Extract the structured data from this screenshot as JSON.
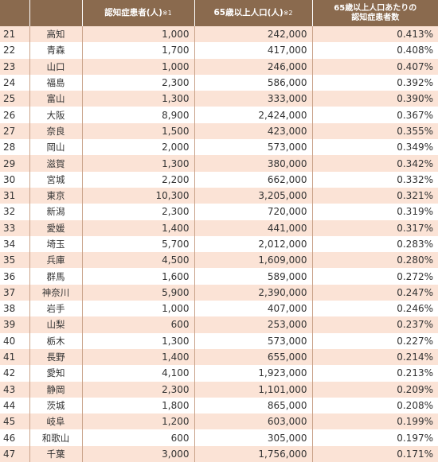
{
  "headers": {
    "rank": "",
    "prefecture": "",
    "patients": "認知症患者(人)",
    "patients_note": "※1",
    "population": "65歳以上人口(人)",
    "population_note": "※2",
    "rate_line1": "65歳以上人口あたりの",
    "rate_line2": "認知症患者数"
  },
  "rows": [
    {
      "rank": "21",
      "prefecture": "高知",
      "patients": "1,000",
      "population": "242,000",
      "rate": "0.413%"
    },
    {
      "rank": "22",
      "prefecture": "青森",
      "patients": "1,700",
      "population": "417,000",
      "rate": "0.408%"
    },
    {
      "rank": "23",
      "prefecture": "山口",
      "patients": "1,000",
      "population": "246,000",
      "rate": "0.407%"
    },
    {
      "rank": "24",
      "prefecture": "福島",
      "patients": "2,300",
      "population": "586,000",
      "rate": "0.392%"
    },
    {
      "rank": "25",
      "prefecture": "富山",
      "patients": "1,300",
      "population": "333,000",
      "rate": "0.390%"
    },
    {
      "rank": "26",
      "prefecture": "大阪",
      "patients": "8,900",
      "population": "2,424,000",
      "rate": "0.367%"
    },
    {
      "rank": "27",
      "prefecture": "奈良",
      "patients": "1,500",
      "population": "423,000",
      "rate": "0.355%"
    },
    {
      "rank": "28",
      "prefecture": "岡山",
      "patients": "2,000",
      "population": "573,000",
      "rate": "0.349%"
    },
    {
      "rank": "29",
      "prefecture": "滋賀",
      "patients": "1,300",
      "population": "380,000",
      "rate": "0.342%"
    },
    {
      "rank": "30",
      "prefecture": "宮城",
      "patients": "2,200",
      "population": "662,000",
      "rate": "0.332%"
    },
    {
      "rank": "31",
      "prefecture": "東京",
      "patients": "10,300",
      "population": "3,205,000",
      "rate": "0.321%"
    },
    {
      "rank": "32",
      "prefecture": "新潟",
      "patients": "2,300",
      "population": "720,000",
      "rate": "0.319%"
    },
    {
      "rank": "33",
      "prefecture": "愛媛",
      "patients": "1,400",
      "population": "441,000",
      "rate": "0.317%"
    },
    {
      "rank": "34",
      "prefecture": "埼玉",
      "patients": "5,700",
      "population": "2,012,000",
      "rate": "0.283%"
    },
    {
      "rank": "35",
      "prefecture": "兵庫",
      "patients": "4,500",
      "population": "1,609,000",
      "rate": "0.280%"
    },
    {
      "rank": "36",
      "prefecture": "群馬",
      "patients": "1,600",
      "population": "589,000",
      "rate": "0.272%"
    },
    {
      "rank": "37",
      "prefecture": "神奈川",
      "patients": "5,900",
      "population": "2,390,000",
      "rate": "0.247%"
    },
    {
      "rank": "38",
      "prefecture": "岩手",
      "patients": "1,000",
      "population": "407,000",
      "rate": "0.246%"
    },
    {
      "rank": "39",
      "prefecture": "山梨",
      "patients": "600",
      "population": "253,000",
      "rate": "0.237%"
    },
    {
      "rank": "40",
      "prefecture": "栃木",
      "patients": "1,300",
      "population": "573,000",
      "rate": "0.227%"
    },
    {
      "rank": "41",
      "prefecture": "長野",
      "patients": "1,400",
      "population": "655,000",
      "rate": "0.214%"
    },
    {
      "rank": "42",
      "prefecture": "愛知",
      "patients": "4,100",
      "population": "1,923,000",
      "rate": "0.213%"
    },
    {
      "rank": "43",
      "prefecture": "静岡",
      "patients": "2,300",
      "population": "1,101,000",
      "rate": "0.209%"
    },
    {
      "rank": "44",
      "prefecture": "茨城",
      "patients": "1,800",
      "population": "865,000",
      "rate": "0.208%"
    },
    {
      "rank": "45",
      "prefecture": "岐阜",
      "patients": "1,200",
      "population": "603,000",
      "rate": "0.199%"
    },
    {
      "rank": "46",
      "prefecture": "和歌山",
      "patients": "600",
      "population": "305,000",
      "rate": "0.197%"
    },
    {
      "rank": "47",
      "prefecture": "千葉",
      "patients": "3,000",
      "population": "1,756,000",
      "rate": "0.171%"
    }
  ]
}
